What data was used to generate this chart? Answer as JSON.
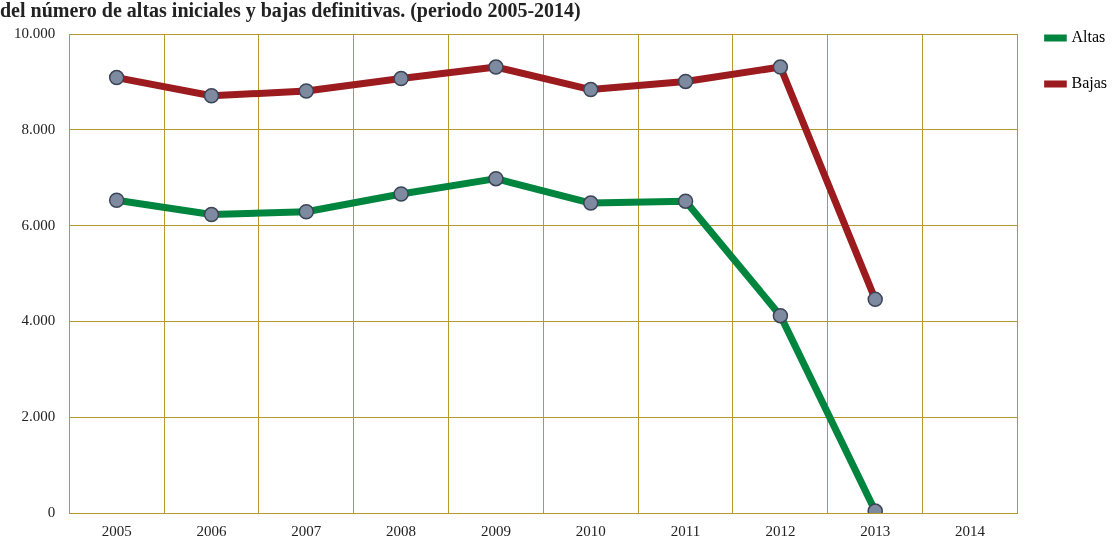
{
  "chart_data": {
    "type": "line",
    "title": "del número de altas iniciales y bajas definitivas. (periodo 2005-2014)",
    "categories": [
      "2005",
      "2006",
      "2007",
      "2008",
      "2009",
      "2010",
      "2011",
      "2012",
      "2013",
      "2014"
    ],
    "series": [
      {
        "name": "Altas",
        "color": "#00853f",
        "values": [
          6530,
          6230,
          6290,
          6660,
          6980,
          6470,
          6510,
          4120,
          40,
          null
        ]
      },
      {
        "name": "Bajas",
        "color": "#9b1b1e",
        "values": [
          9090,
          8710,
          8810,
          9070,
          9310,
          8840,
          9010,
          9310,
          4460,
          null
        ]
      }
    ],
    "ylim": [
      0,
      10000
    ],
    "yticks": [
      {
        "value": 0,
        "label": "0"
      },
      {
        "value": 2000,
        "label": "2.000"
      },
      {
        "value": 4000,
        "label": "4.000"
      },
      {
        "value": 6000,
        "label": "6.000"
      },
      {
        "value": 8000,
        "label": "8.000"
      },
      {
        "value": 10000,
        "label": "10.000"
      }
    ],
    "grid": true,
    "legend": "top right",
    "marker": "circle",
    "line_style": "solid"
  }
}
